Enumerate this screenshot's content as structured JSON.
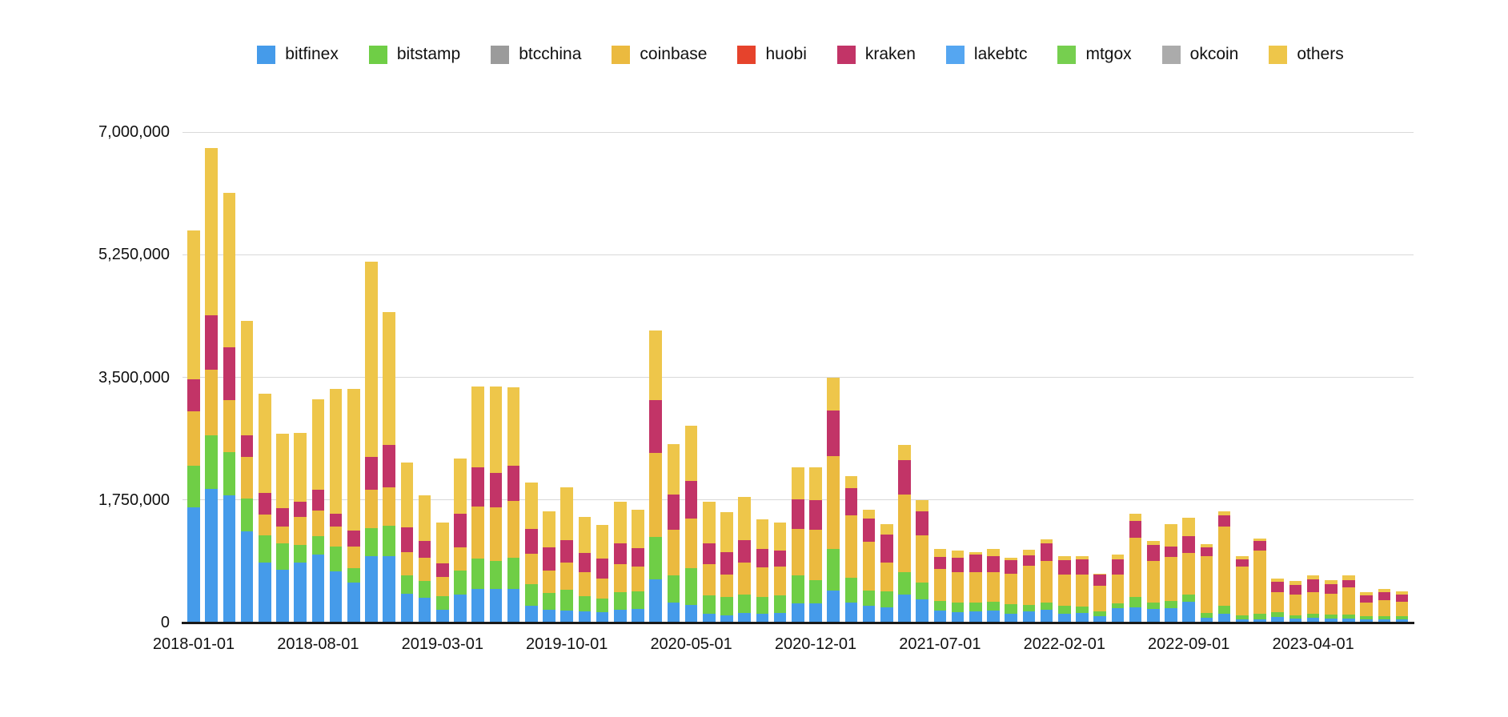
{
  "chart_data": {
    "type": "bar",
    "stacked": true,
    "title": "",
    "xlabel": "",
    "ylabel": "",
    "ylim": [
      0,
      7000000
    ],
    "grid": true,
    "legend_position": "top",
    "categories": [
      "2018-01-01",
      "2018-02-01",
      "2018-03-01",
      "2018-04-01",
      "2018-05-01",
      "2018-06-01",
      "2018-07-01",
      "2018-08-01",
      "2018-09-01",
      "2018-10-01",
      "2018-11-01",
      "2018-12-01",
      "2019-01-01",
      "2019-02-01",
      "2019-03-01",
      "2019-04-01",
      "2019-05-01",
      "2019-06-01",
      "2019-07-01",
      "2019-08-01",
      "2019-09-01",
      "2019-10-01",
      "2019-11-01",
      "2019-12-01",
      "2020-01-01",
      "2020-02-01",
      "2020-03-01",
      "2020-04-01",
      "2020-05-01",
      "2020-06-01",
      "2020-07-01",
      "2020-08-01",
      "2020-09-01",
      "2020-10-01",
      "2020-11-01",
      "2020-12-01",
      "2021-01-01",
      "2021-02-01",
      "2021-03-01",
      "2021-04-01",
      "2021-05-01",
      "2021-06-01",
      "2021-07-01",
      "2021-08-01",
      "2021-09-01",
      "2021-10-01",
      "2021-11-01",
      "2021-12-01",
      "2022-01-01",
      "2022-02-01",
      "2022-03-01",
      "2022-04-01",
      "2022-05-01",
      "2022-06-01",
      "2022-07-01",
      "2022-08-01",
      "2022-09-01",
      "2022-10-01",
      "2022-11-01",
      "2022-12-01",
      "2023-01-01",
      "2023-02-01",
      "2023-03-01",
      "2023-04-01",
      "2023-05-01",
      "2023-06-01",
      "2023-07-01",
      "2023-08-01",
      "2023-09-01"
    ],
    "x_tick_indices": [
      0,
      7,
      14,
      21,
      28,
      35,
      42,
      49,
      56,
      63
    ],
    "y_ticks": [
      {
        "value": 0,
        "label": "0"
      },
      {
        "value": 1750000,
        "label": "1,750,000"
      },
      {
        "value": 3500000,
        "label": "3,500,000"
      },
      {
        "value": 5250000,
        "label": "5,250,000"
      },
      {
        "value": 7000000,
        "label": "7,000,000"
      }
    ],
    "series": [
      {
        "name": "bitfinex",
        "color": "#459BEA",
        "values": [
          1640000,
          1910000,
          1820000,
          1300000,
          860000,
          750000,
          860000,
          970000,
          730000,
          570000,
          950000,
          950000,
          410000,
          350000,
          180000,
          400000,
          480000,
          480000,
          475000,
          240000,
          180000,
          170000,
          160000,
          150000,
          180000,
          190000,
          620000,
          290000,
          250000,
          130000,
          100000,
          140000,
          120000,
          140000,
          270000,
          270000,
          460000,
          290000,
          240000,
          220000,
          400000,
          330000,
          170000,
          150000,
          160000,
          170000,
          130000,
          160000,
          180000,
          130000,
          140000,
          90000,
          200000,
          220000,
          190000,
          200000,
          300000,
          70000,
          120000,
          40000,
          50000,
          75000,
          55000,
          65000,
          60000,
          60000,
          50000,
          50000,
          50000
        ]
      },
      {
        "name": "bitstamp",
        "color": "#6FCE46",
        "values": [
          600000,
          760000,
          610000,
          470000,
          390000,
          380000,
          250000,
          260000,
          350000,
          210000,
          400000,
          430000,
          260000,
          240000,
          200000,
          340000,
          430000,
          400000,
          455000,
          310000,
          240000,
          300000,
          220000,
          190000,
          250000,
          255000,
          600000,
          380000,
          530000,
          260000,
          260000,
          260000,
          240000,
          250000,
          400000,
          340000,
          590000,
          350000,
          220000,
          220000,
          320000,
          240000,
          140000,
          135000,
          120000,
          130000,
          130000,
          90000,
          105000,
          110000,
          90000,
          70000,
          70000,
          150000,
          100000,
          110000,
          100000,
          65000,
          115000,
          65000,
          70000,
          75000,
          46000,
          55000,
          50000,
          50000,
          45000,
          45000,
          45000
        ]
      },
      {
        "name": "btcchina",
        "color": "#9B9B9B",
        "values": [
          0,
          0,
          0,
          0,
          0,
          0,
          0,
          0,
          0,
          0,
          0,
          0,
          0,
          0,
          0,
          0,
          0,
          0,
          0,
          0,
          0,
          0,
          0,
          0,
          0,
          0,
          0,
          0,
          0,
          0,
          0,
          0,
          0,
          0,
          0,
          0,
          0,
          0,
          0,
          0,
          0,
          0,
          0,
          0,
          0,
          0,
          0,
          0,
          0,
          0,
          0,
          0,
          0,
          0,
          0,
          0,
          0,
          0,
          0,
          0,
          0,
          0,
          0,
          0,
          0,
          0,
          0,
          0,
          0
        ]
      },
      {
        "name": "coinbase",
        "color": "#EBBA3F",
        "values": [
          780000,
          940000,
          740000,
          590000,
          290000,
          240000,
          400000,
          370000,
          290000,
          300000,
          550000,
          550000,
          330000,
          330000,
          270000,
          330000,
          750000,
          760000,
          810000,
          430000,
          320000,
          390000,
          340000,
          290000,
          400000,
          355000,
          1200000,
          660000,
          700000,
          440000,
          330000,
          460000,
          430000,
          410000,
          670000,
          720000,
          1320000,
          890000,
          690000,
          420000,
          1110000,
          670000,
          460000,
          435000,
          440000,
          420000,
          440000,
          560000,
          595000,
          450000,
          450000,
          370000,
          420000,
          840000,
          590000,
          630000,
          590000,
          810000,
          1130000,
          690000,
          905000,
          285000,
          300000,
          315000,
          300000,
          390000,
          190000,
          220000,
          200000
        ]
      },
      {
        "name": "huobi",
        "color": "#E6432C",
        "values": [
          0,
          0,
          0,
          0,
          0,
          0,
          0,
          0,
          0,
          0,
          0,
          0,
          0,
          0,
          0,
          0,
          0,
          0,
          0,
          0,
          0,
          0,
          0,
          0,
          0,
          0,
          0,
          0,
          0,
          0,
          0,
          0,
          0,
          0,
          0,
          0,
          0,
          0,
          0,
          0,
          0,
          0,
          0,
          0,
          0,
          0,
          0,
          0,
          0,
          0,
          0,
          0,
          0,
          0,
          0,
          0,
          0,
          0,
          0,
          0,
          0,
          0,
          0,
          0,
          0,
          0,
          0,
          0,
          0
        ]
      },
      {
        "name": "kraken",
        "color": "#C23467",
        "values": [
          450000,
          770000,
          760000,
          310000,
          310000,
          260000,
          210000,
          290000,
          180000,
          230000,
          460000,
          610000,
          360000,
          240000,
          190000,
          480000,
          550000,
          500000,
          500000,
          360000,
          330000,
          320000,
          270000,
          280000,
          300000,
          265000,
          760000,
          500000,
          540000,
          300000,
          320000,
          320000,
          260000,
          230000,
          420000,
          420000,
          660000,
          390000,
          330000,
          400000,
          490000,
          350000,
          170000,
          200000,
          250000,
          230000,
          190000,
          150000,
          250000,
          200000,
          220000,
          150000,
          210000,
          240000,
          230000,
          150000,
          245000,
          125000,
          170000,
          105000,
          135000,
          145000,
          140000,
          180000,
          140000,
          110000,
          100000,
          120000,
          105000
        ]
      },
      {
        "name": "lakebtc",
        "color": "#55A6F1",
        "values": [
          0,
          0,
          0,
          0,
          0,
          0,
          0,
          0,
          0,
          0,
          0,
          0,
          0,
          0,
          0,
          0,
          0,
          0,
          0,
          0,
          0,
          0,
          0,
          0,
          0,
          0,
          0,
          0,
          0,
          0,
          0,
          0,
          0,
          0,
          0,
          0,
          0,
          0,
          0,
          0,
          0,
          0,
          0,
          0,
          0,
          0,
          0,
          0,
          0,
          0,
          0,
          0,
          0,
          0,
          0,
          0,
          0,
          0,
          0,
          0,
          0,
          0,
          0,
          0,
          0,
          0,
          0,
          0,
          0
        ]
      },
      {
        "name": "mtgox",
        "color": "#76CF4F",
        "values": [
          0,
          0,
          0,
          0,
          0,
          0,
          0,
          0,
          0,
          0,
          0,
          0,
          0,
          0,
          0,
          0,
          0,
          0,
          0,
          0,
          0,
          0,
          0,
          0,
          0,
          0,
          0,
          0,
          0,
          0,
          0,
          0,
          0,
          0,
          0,
          0,
          0,
          0,
          0,
          0,
          0,
          0,
          0,
          0,
          0,
          0,
          0,
          0,
          0,
          0,
          0,
          0,
          0,
          0,
          0,
          0,
          0,
          0,
          0,
          0,
          0,
          0,
          0,
          0,
          0,
          0,
          0,
          0,
          0
        ]
      },
      {
        "name": "okcoin",
        "color": "#ABABAB",
        "values": [
          0,
          0,
          0,
          0,
          0,
          0,
          0,
          0,
          0,
          0,
          0,
          0,
          0,
          0,
          0,
          0,
          0,
          0,
          0,
          0,
          0,
          0,
          0,
          0,
          0,
          0,
          0,
          0,
          0,
          0,
          0,
          0,
          0,
          0,
          0,
          0,
          0,
          0,
          0,
          0,
          0,
          0,
          0,
          0,
          0,
          0,
          0,
          0,
          0,
          0,
          0,
          0,
          0,
          0,
          0,
          0,
          0,
          0,
          0,
          0,
          0,
          0,
          0,
          0,
          0,
          0,
          0,
          0,
          0
        ]
      },
      {
        "name": "others",
        "color": "#EEC64A",
        "values": [
          2120000,
          2390000,
          2200000,
          1640000,
          1420000,
          1070000,
          990000,
          1300000,
          1790000,
          2030000,
          2790000,
          1890000,
          920000,
          650000,
          590000,
          790000,
          1160000,
          1230000,
          1120000,
          660000,
          520000,
          750000,
          520000,
          480000,
          590000,
          540000,
          990000,
          720000,
          790000,
          590000,
          570000,
          610000,
          420000,
          400000,
          450000,
          460000,
          460000,
          170000,
          130000,
          140000,
          220000,
          160000,
          110000,
          110000,
          40000,
          100000,
          30000,
          75000,
          60000,
          60000,
          50000,
          20000,
          70000,
          100000,
          50000,
          310000,
          260000,
          45000,
          55000,
          45000,
          40000,
          45000,
          55000,
          55000,
          60000,
          60000,
          45000,
          40000,
          40000
        ]
      }
    ]
  }
}
